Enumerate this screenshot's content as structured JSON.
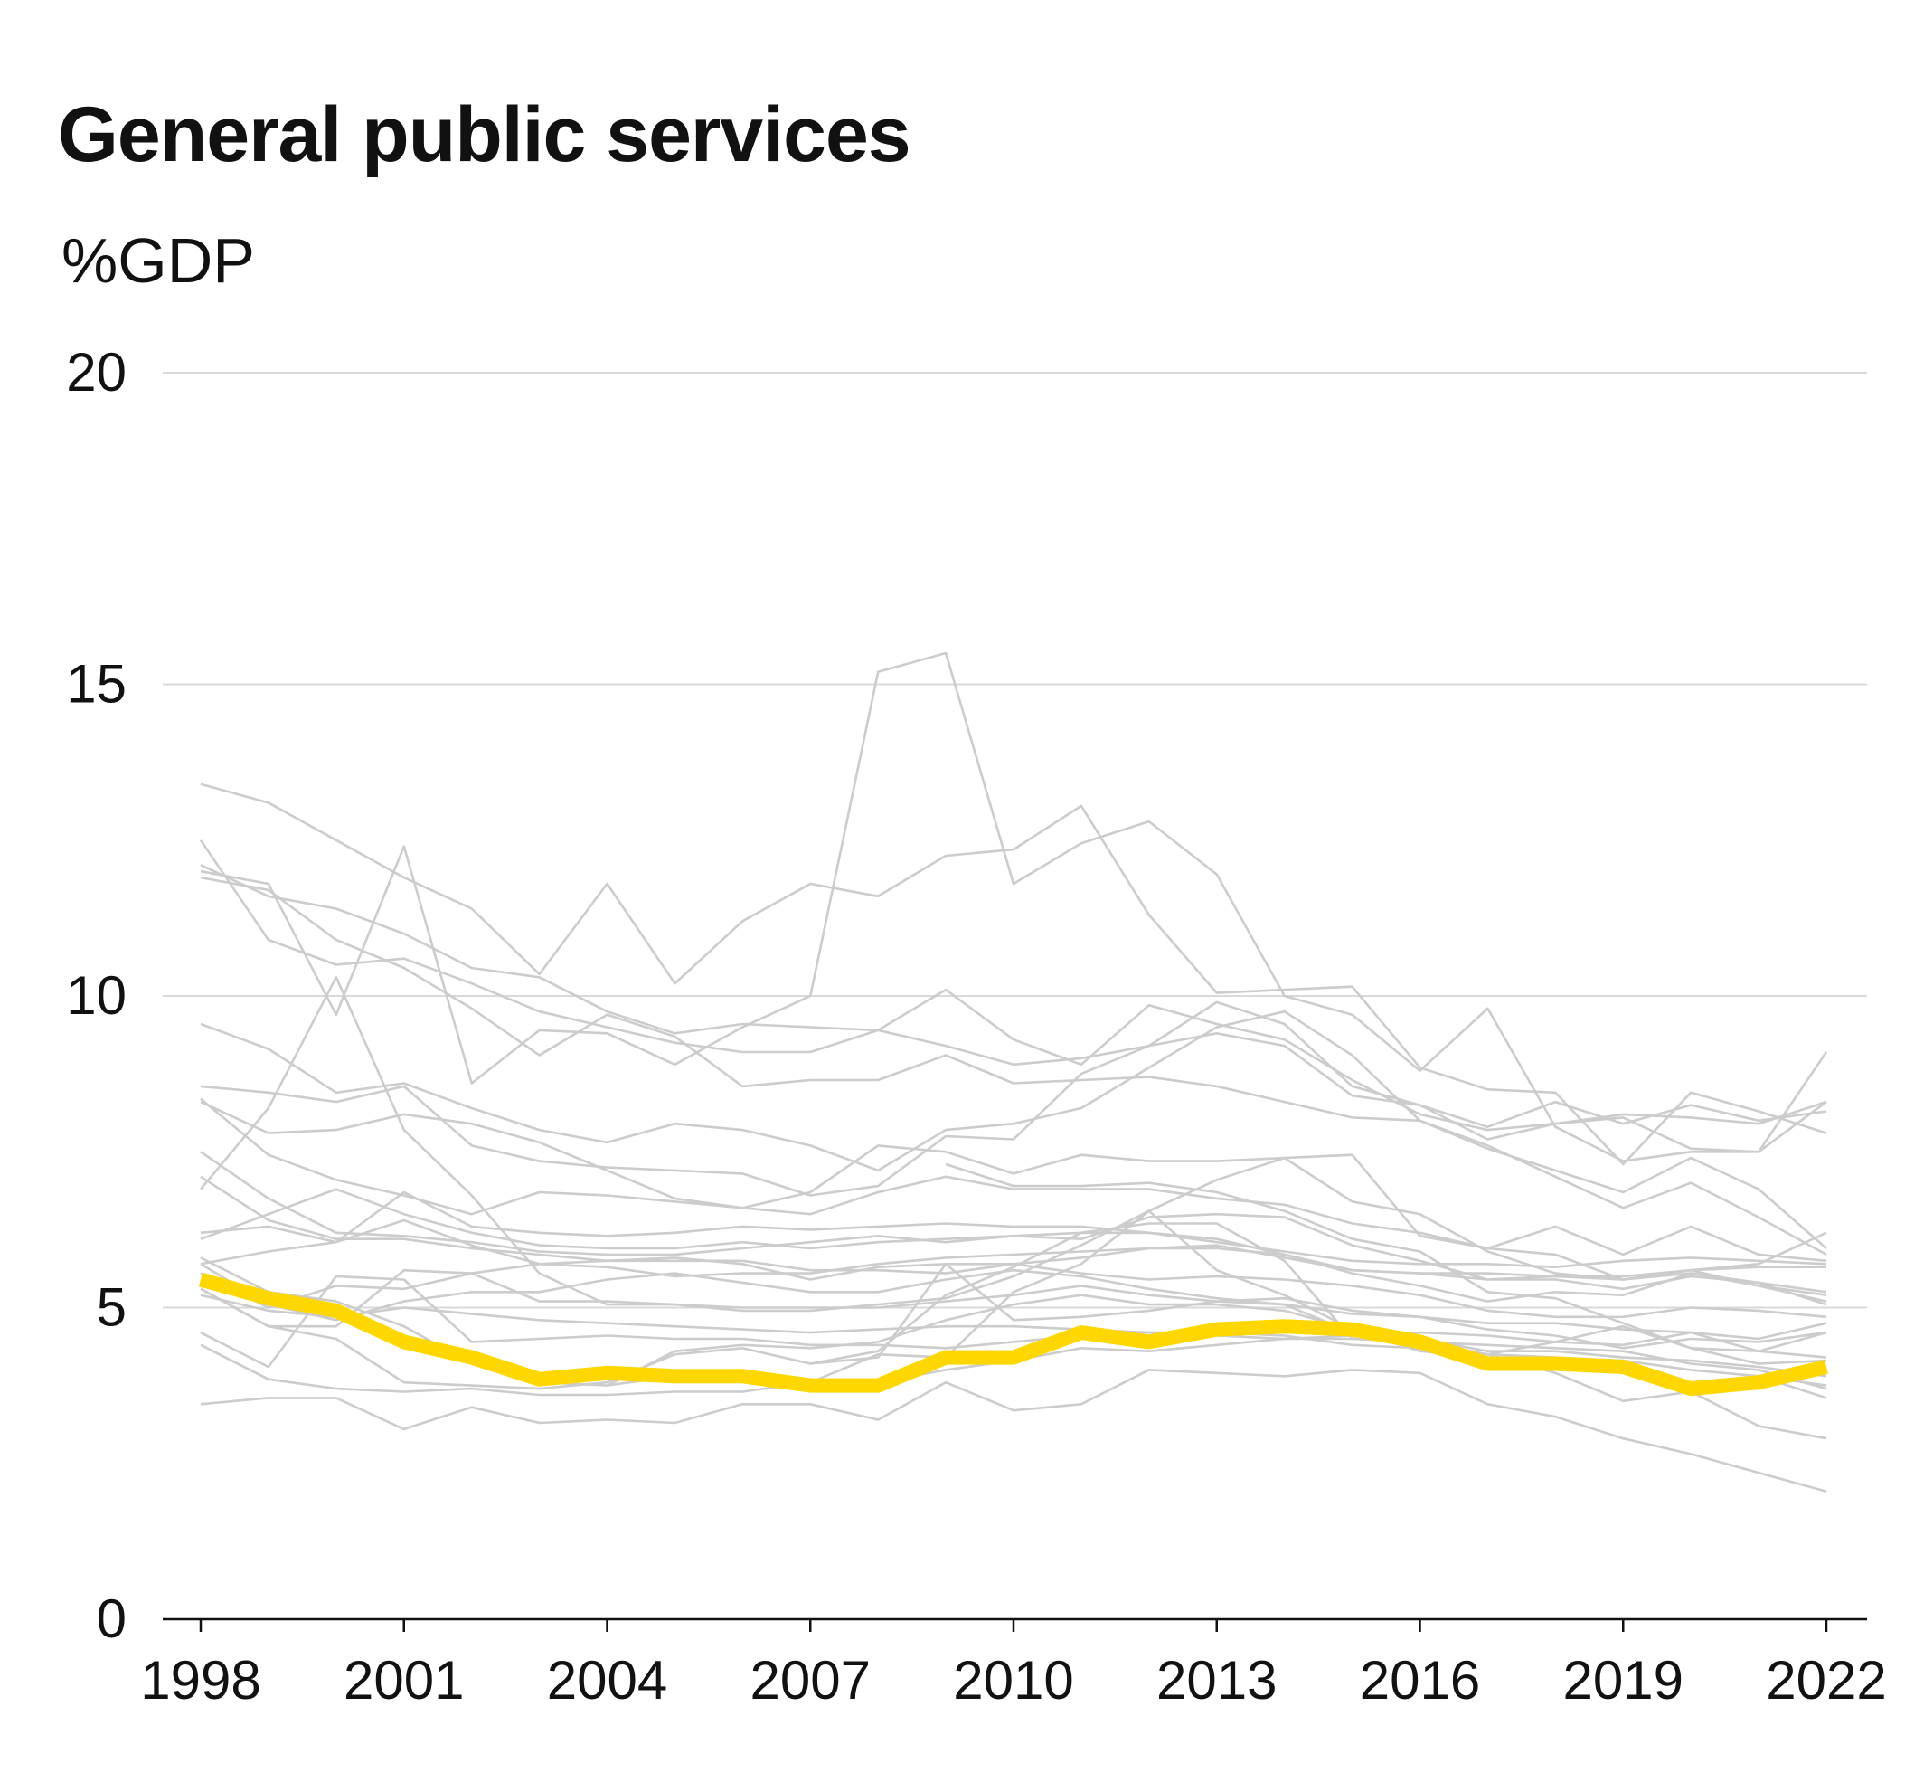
{
  "chart_data": {
    "type": "line",
    "title": "General public services",
    "ylabel": "%GDP",
    "xlabel": "",
    "ylim": [
      0,
      20
    ],
    "yticks": [
      0,
      5,
      10,
      15,
      20
    ],
    "xlim": [
      1998,
      2022
    ],
    "xticks": [
      1998,
      2001,
      2004,
      2007,
      2010,
      2013,
      2016,
      2019,
      2022
    ],
    "grid": true,
    "highlight_color": "#FFD700",
    "background_color": "#CCCCCC",
    "x": [
      1998,
      1999,
      2000,
      2001,
      2002,
      2003,
      2004,
      2005,
      2006,
      2007,
      2008,
      2009,
      2010,
      2011,
      2012,
      2013,
      2014,
      2015,
      2016,
      2017,
      2018,
      2019,
      2020,
      2021,
      2022
    ],
    "highlight": {
      "values": [
        5.45,
        5.15,
        4.95,
        4.45,
        4.2,
        3.85,
        3.95,
        3.9,
        3.9,
        3.75,
        3.75,
        4.2,
        4.2,
        4.6,
        4.45,
        4.65,
        4.7,
        4.65,
        4.45,
        4.1,
        4.1,
        4.05,
        3.7,
        3.8,
        4.05
      ]
    },
    "background_series": [
      {
        "values": [
          13.4,
          13.1,
          12.5,
          11.9,
          11.4,
          10.35,
          11.8,
          10.2,
          11.2,
          11.8,
          11.6,
          12.25,
          12.35,
          13.05,
          11.3,
          10.05,
          10.1,
          10.15,
          8.85,
          8.5,
          8.45,
          7.3,
          8.45,
          8.15,
          7.8
        ]
      },
      {
        "values": [
          12.0,
          11.8,
          9.7,
          12.4,
          8.6,
          9.45,
          9.4,
          8.9,
          9.5,
          10.0,
          15.2,
          15.5,
          11.8,
          12.45,
          12.8,
          11.95,
          10.0,
          9.7,
          8.8,
          9.8,
          7.9,
          7.35,
          7.5,
          7.5,
          9.1
        ]
      },
      {
        "values": [
          12.5,
          10.9,
          10.5,
          10.6,
          10.2,
          9.75,
          9.5,
          9.25,
          9.1,
          9.1,
          9.45,
          10.1,
          9.3,
          8.9,
          9.85,
          9.55,
          9.3,
          8.65,
          8.1,
          7.85,
          7.95,
          8.1,
          8.05,
          7.95,
          8.3
        ]
      },
      {
        "values": [
          12.1,
          11.6,
          11.4,
          11.0,
          10.45,
          10.3,
          9.75,
          9.4,
          9.55,
          9.5,
          9.45,
          9.2,
          8.9,
          9.0,
          9.2,
          9.4,
          9.2,
          8.4,
          8.25,
          7.9,
          8.3,
          7.95,
          8.25,
          8.0,
          8.15
        ]
      },
      {
        "values": [
          11.9,
          11.7,
          10.9,
          10.45,
          9.8,
          9.05,
          9.7,
          9.35,
          8.55,
          8.65,
          8.65,
          9.05,
          8.6,
          8.65,
          8.7,
          8.55,
          8.3,
          8.05,
          8.0,
          7.6,
          7.1,
          6.6,
          7.0,
          6.45,
          5.85
        ]
      },
      {
        "values": [
          9.55,
          9.15,
          8.45,
          8.6,
          8.2,
          7.85,
          7.65,
          7.95,
          7.85,
          7.6,
          7.2,
          7.85,
          7.95,
          8.2,
          8.85,
          9.5,
          9.75,
          9.05,
          8.0,
          7.55,
          7.2,
          6.85,
          7.4,
          6.9,
          5.95
        ]
      },
      {
        "values": [
          8.55,
          8.45,
          8.3,
          8.55,
          7.6,
          7.35,
          7.25,
          7.2,
          7.15,
          6.8,
          6.95,
          7.75,
          7.7,
          8.75,
          9.2,
          9.9,
          9.55,
          8.55,
          8.25,
          7.7,
          7.95,
          8.05,
          7.55,
          7.5,
          8.3
        ]
      },
      {
        "values": [
          8.3,
          7.8,
          7.85,
          8.1,
          7.95,
          7.65,
          7.2,
          6.75,
          6.6,
          6.85,
          7.6,
          7.5,
          7.15,
          7.45,
          7.35,
          7.35,
          7.4,
          7.45,
          6.15,
          5.95,
          6.3,
          5.85,
          6.3,
          5.85,
          5.75
        ]
      },
      {
        "values": [
          8.35,
          7.45,
          7.05,
          6.8,
          6.5,
          6.85,
          6.8,
          6.7,
          6.6,
          6.5,
          6.85,
          7.1,
          6.9,
          6.9,
          6.9,
          6.75,
          6.65,
          6.35,
          6.2,
          5.95,
          5.85,
          5.45,
          5.6,
          5.35,
          5.1
        ]
      },
      {
        "values": [
          7.5,
          6.75,
          6.2,
          6.15,
          6.05,
          5.9,
          5.85,
          5.85,
          5.95,
          6.05,
          6.15,
          6.05,
          6.15,
          6.1,
          6.45,
          6.5,
          6.45,
          6.0,
          5.75,
          5.45,
          5.45,
          5.3,
          5.5,
          5.4,
          5.25
        ]
      },
      {
        "values": [
          7.1,
          6.4,
          6.1,
          6.1,
          5.95,
          5.85,
          5.75,
          5.75,
          5.75,
          5.6,
          5.6,
          5.55,
          5.7,
          5.8,
          5.95,
          5.95,
          5.85,
          5.6,
          5.55,
          5.55,
          5.5,
          5.5,
          5.6,
          5.7,
          6.2
        ]
      },
      {
        "values": [
          6.1,
          6.5,
          6.9,
          6.5,
          6.2,
          6.0,
          5.95,
          5.95,
          6.05,
          5.95,
          6.05,
          6.1,
          6.15,
          6.2,
          6.2,
          6.05,
          5.9,
          5.75,
          5.7,
          5.7,
          5.65,
          5.75,
          5.8,
          5.75,
          5.7
        ]
      },
      {
        "values": [
          6.2,
          6.3,
          6.05,
          6.4,
          6.0,
          5.7,
          5.65,
          5.5,
          5.55,
          5.55,
          5.7,
          5.8,
          5.85,
          5.9,
          5.95,
          6.0,
          5.8,
          5.6,
          5.55,
          5.45,
          5.5,
          5.45,
          5.6,
          5.65,
          5.65
        ]
      },
      {
        "values": [
          6.9,
          8.2,
          10.3,
          7.85,
          6.8,
          5.55,
          5.05,
          5.05,
          4.95,
          4.95,
          5.05,
          5.15,
          5.5,
          6.0,
          6.55,
          7.05,
          7.4,
          6.7,
          6.5,
          5.9,
          5.55,
          5.45,
          5.55,
          5.4,
          5.05
        ]
      },
      {
        "values": [
          5.7,
          5.9,
          6.05,
          6.85,
          6.3,
          6.2,
          6.15,
          6.2,
          6.3,
          6.25,
          6.3,
          6.35,
          6.3,
          6.3,
          6.2,
          6.1,
          5.85,
          5.55,
          5.35,
          5.1,
          5.25,
          5.2,
          5.55,
          5.35,
          5.2
        ]
      },
      {
        "values": [
          5.55,
          5.0,
          5.35,
          5.3,
          5.55,
          5.7,
          5.75,
          5.8,
          5.7,
          5.45,
          5.65,
          5.7,
          5.7,
          5.55,
          5.45,
          5.5,
          5.45,
          5.35,
          5.2,
          4.95,
          4.85,
          4.85,
          5.0,
          4.95,
          4.85
        ]
      },
      {
        "values": [
          5.7,
          5.05,
          4.8,
          5.1,
          5.25,
          5.25,
          5.45,
          5.55,
          5.4,
          5.25,
          5.25,
          5.45,
          5.6,
          5.5,
          5.3,
          5.15,
          5.05,
          4.9,
          4.85,
          4.75,
          4.75,
          4.65,
          4.6,
          4.5,
          4.75
        ]
      },
      {
        "values": [
          5.3,
          4.7,
          4.7,
          5.6,
          5.55,
          5.1,
          5.1,
          5.05,
          5.0,
          5.0,
          5.0,
          5.1,
          5.2,
          5.35,
          5.2,
          5.1,
          5.15,
          4.95,
          4.85,
          4.65,
          4.55,
          4.35,
          4.5,
          4.45,
          4.6
        ]
      },
      {
        "values": [
          5.2,
          4.95,
          4.85,
          5.0,
          4.9,
          4.8,
          4.75,
          4.7,
          4.65,
          4.6,
          4.65,
          4.7,
          4.7,
          4.65,
          4.6,
          4.55,
          4.5,
          4.5,
          4.45,
          4.4,
          4.35,
          4.3,
          4.1,
          4.0,
          3.7
        ]
      },
      {
        "values": [
          4.6,
          4.05,
          5.5,
          5.45,
          4.45,
          4.5,
          4.55,
          4.5,
          4.5,
          4.4,
          4.4,
          4.35,
          4.45,
          4.55,
          4.6,
          4.6,
          4.55,
          4.4,
          4.35,
          4.25,
          4.2,
          4.15,
          4.0,
          3.9,
          3.75
        ]
      },
      {
        "values": [
          5.8,
          5.25,
          5.1,
          4.7,
          4.1,
          3.8,
          3.75,
          3.9,
          3.85,
          3.85,
          3.8,
          4.0,
          4.15,
          4.35,
          4.3,
          4.4,
          4.5,
          4.55,
          4.5,
          4.3,
          4.3,
          4.2,
          4.15,
          4.05,
          3.9
        ]
      },
      {
        "values": [
          4.4,
          3.85,
          3.7,
          3.65,
          3.7,
          3.6,
          3.6,
          3.65,
          3.65,
          3.8,
          4.25,
          4.2,
          5.25,
          5.7,
          6.55,
          5.6,
          5.2,
          4.65,
          4.3,
          4.25,
          4.45,
          4.7,
          4.35,
          4.1,
          4.15
        ]
      },
      {
        "values": [
          5.3,
          4.7,
          4.5,
          3.8,
          3.75,
          3.7,
          3.8,
          4.25,
          4.35,
          4.1,
          4.3,
          5.2,
          5.65,
          6.2,
          6.35,
          6.35,
          5.75,
          4.5,
          4.6,
          4.55,
          4.45,
          4.4,
          4.6,
          4.3,
          4.6
        ]
      },
      {
        "values": [
          3.45,
          3.55,
          3.55,
          3.05,
          3.4,
          3.15,
          3.2,
          3.15,
          3.45,
          3.45,
          3.2,
          3.8,
          3.35,
          3.45,
          4.0,
          3.95,
          3.9,
          4.0,
          3.95,
          3.45,
          3.25,
          2.9,
          2.65,
          2.35,
          2.05
        ]
      },
      {
        "values": [
          null,
          null,
          null,
          null,
          null,
          null,
          null,
          null,
          null,
          4.1,
          4.2,
          5.7,
          4.8,
          4.85,
          4.95,
          5.1,
          5.05,
          4.6,
          4.45,
          4.25,
          3.95,
          3.5,
          3.65,
          3.1,
          2.9
        ]
      },
      {
        "values": [
          null,
          null,
          null,
          null,
          null,
          null,
          null,
          null,
          null,
          null,
          null,
          7.3,
          6.95,
          6.95,
          7.0,
          6.85,
          6.55,
          6.1,
          5.9,
          5.25,
          5.15,
          4.75,
          4.35,
          4.3,
          4.2
        ]
      },
      {
        "values": [
          null,
          null,
          null,
          null,
          null,
          null,
          3.75,
          4.3,
          4.4,
          4.35,
          4.45,
          4.8,
          5.05,
          5.2,
          5.05,
          5.05,
          4.95,
          4.65,
          4.3,
          4.2,
          4.05,
          3.95,
          3.8,
          3.9,
          3.55
        ]
      }
    ]
  }
}
